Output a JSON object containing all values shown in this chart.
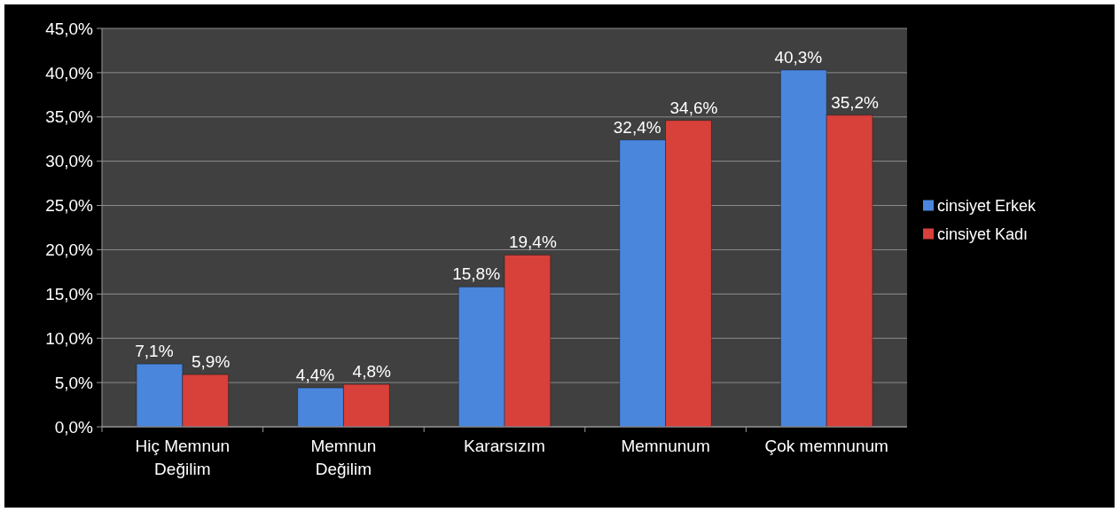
{
  "chart_data": {
    "type": "bar",
    "categories": [
      "Hiç Memnun\nDeğilim",
      "Memnun\nDeğilim",
      "Kararsızım",
      "Memnunum",
      "Çok memnunum"
    ],
    "series": [
      {
        "name": "cinsiyet Erkek",
        "color": "#4a86dc",
        "values": [
          7.1,
          4.4,
          15.8,
          32.4,
          40.3
        ],
        "value_labels": [
          "7,1%",
          "4,4%",
          "15,8%",
          "32,4%",
          "40,3%"
        ]
      },
      {
        "name": "cinsiyet Kadı",
        "color": "#d8403a",
        "values": [
          5.9,
          4.8,
          19.4,
          34.6,
          35.2
        ],
        "value_labels": [
          "5,9%",
          "4,8%",
          "19,4%",
          "34,6%",
          "35,2%"
        ]
      }
    ],
    "ylim": [
      0,
      45
    ],
    "yticks": [
      {
        "value": 0,
        "label": "0,0%"
      },
      {
        "value": 5,
        "label": "5,0%"
      },
      {
        "value": 10,
        "label": "10,0%"
      },
      {
        "value": 15,
        "label": "15,0%"
      },
      {
        "value": 20,
        "label": "20,0%"
      },
      {
        "value": 25,
        "label": "25,0%"
      },
      {
        "value": 30,
        "label": "30,0%"
      },
      {
        "value": 35,
        "label": "35,0%"
      },
      {
        "value": 40,
        "label": "40,0%"
      },
      {
        "value": 45,
        "label": "45,0%"
      }
    ],
    "grid": "y",
    "legend": "right"
  }
}
